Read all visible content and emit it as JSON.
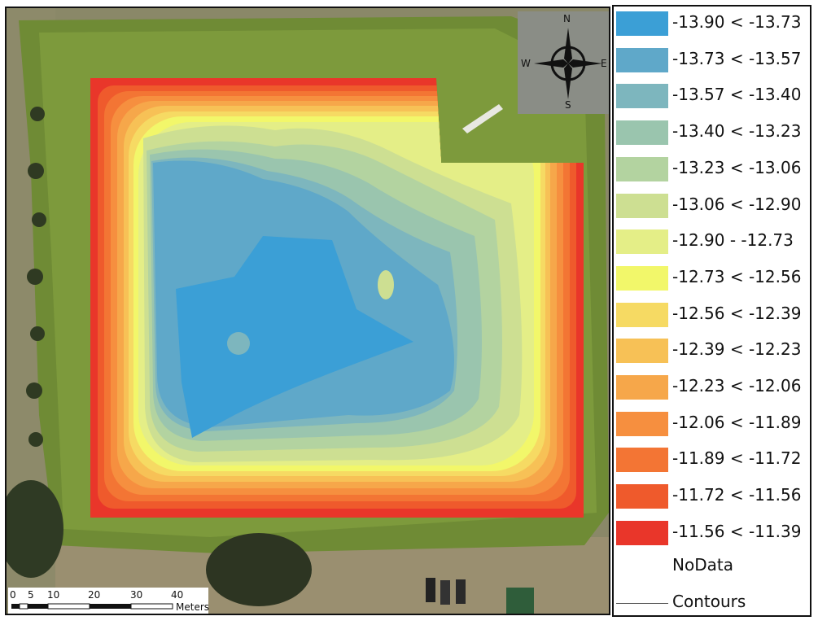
{
  "compass": {
    "north": "N",
    "south": "S",
    "east": "E",
    "west": "W"
  },
  "scalebar": {
    "ticks": [
      "0",
      "5",
      "10",
      "20",
      "30",
      "40"
    ],
    "unit": "Meters"
  },
  "legend": {
    "classes": [
      {
        "label": "-13.90 < -13.73",
        "color": "#3b9fd6"
      },
      {
        "label": "-13.73 < -13.57",
        "color": "#5fa8c9"
      },
      {
        "label": "-13.57 < -13.40",
        "color": "#7db6be"
      },
      {
        "label": "-13.40 < -13.23",
        "color": "#9ac5ae"
      },
      {
        "label": "-13.23 < -13.06",
        "color": "#b3d3a0"
      },
      {
        "label": "-13.06 < -12.90",
        "color": "#cddf92"
      },
      {
        "label": "-12.90 - -12.73",
        "color": "#e4ee87"
      },
      {
        "label": "-12.73 < -12.56",
        "color": "#f2f76a"
      },
      {
        "label": "-12.56 < -12.39",
        "color": "#f6da63"
      },
      {
        "label": "-12.39 < -12.23",
        "color": "#f7c156"
      },
      {
        "label": "-12.23 < -12.06",
        "color": "#f6a74a"
      },
      {
        "label": "-12.06 < -11.89",
        "color": "#f68f3f"
      },
      {
        "label": "-11.89 < -11.72",
        "color": "#f37534"
      },
      {
        "label": "-11.72 < -11.56",
        "color": "#ef5a2c"
      },
      {
        "label": "-11.56 < -11.39",
        "color": "#e9362a"
      }
    ],
    "nodata_label": "NoData",
    "contours_label": "Contours"
  }
}
